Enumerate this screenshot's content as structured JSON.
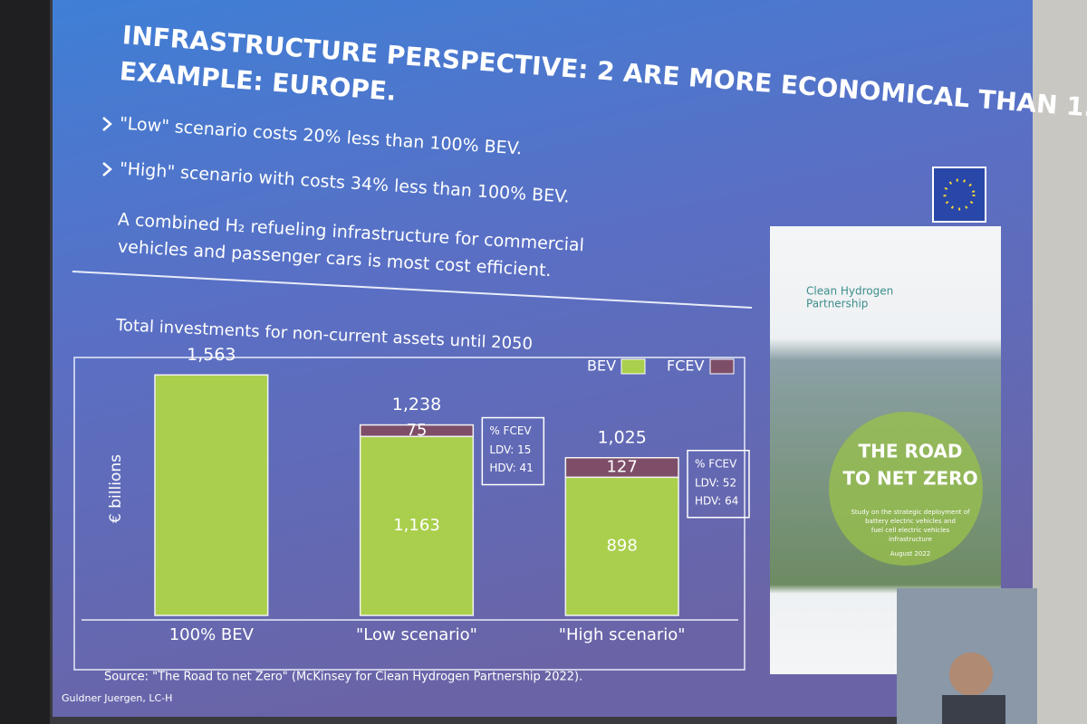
{
  "slide": {
    "title_lines": [
      "INFRASTRUCTURE PERSPECTIVE: 2 ARE MORE ECONOMICAL THAN 1.",
      "EXAMPLE: EUROPE."
    ],
    "bullets": [
      "\"Low\" scenario costs 20% less than 100% BEV.",
      "\"High\" scenario with costs 34% less than 100% BEV."
    ],
    "statement_lines": [
      "A combined H₂ refueling infrastructure for commercial",
      "vehicles and passenger cars is most cost efficient."
    ],
    "source": "Source: \"The Road to net Zero\" (McKinsey for Clean Hydrogen Partnership 2022).",
    "presenter": "Guldner Juergen, LC-H"
  },
  "cover": {
    "brand_lines": [
      "Clean Hydrogen",
      "Partnership"
    ],
    "title_lines": [
      "THE ROAD",
      "TO NET ZERO"
    ],
    "subtitle_lines": [
      "Study on the strategic deployment of",
      "battery electric vehicles and",
      "fuel cell electric vehicles",
      "infrastructure"
    ],
    "date": "August 2022"
  },
  "chart_data": {
    "type": "stacked_bar",
    "title": "Total investments for non-current assets until 2050",
    "y_label": "€ billions",
    "categories": [
      "100% BEV",
      "\"Low scenario\"",
      "\"High scenario\""
    ],
    "series": [
      {
        "name": "BEV",
        "color": "#a9cf4c",
        "values": [
          1563,
          1163,
          898
        ],
        "value_labels": [
          null,
          "1,163",
          "898"
        ]
      },
      {
        "name": "FCEV",
        "color": "#7e4e68",
        "values": [
          null,
          75,
          127
        ]
      }
    ],
    "totals": {
      "values": [
        1563,
        1238,
        1025
      ],
      "labels": [
        "1,563",
        "1,238",
        "1,025"
      ]
    },
    "annotations": [
      {
        "title": "% FCEV",
        "lines": [
          "LDV: 15",
          "HDV: 41"
        ]
      },
      {
        "title": "% FCEV",
        "lines": [
          "LDV: 52",
          "HDV: 64"
        ]
      }
    ],
    "ylim": [
      0,
      1700
    ]
  }
}
